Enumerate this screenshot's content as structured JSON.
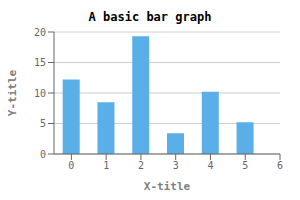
{
  "chart_data": {
    "type": "bar",
    "title": "A basic bar graph",
    "xlabel": "X-title",
    "ylabel": "Y-title",
    "x": [
      0,
      1,
      2,
      3,
      4,
      5
    ],
    "values": [
      12.2,
      8.5,
      19.3,
      3.4,
      10.2,
      5.2
    ],
    "color": "#5aafe8",
    "xlim": [
      -0.5,
      6.0
    ],
    "ylim": [
      0,
      20
    ],
    "xticks": [
      0,
      1,
      2,
      3,
      4,
      5,
      6
    ],
    "yticks": [
      0,
      5,
      10,
      15,
      20
    ],
    "grid": true
  }
}
